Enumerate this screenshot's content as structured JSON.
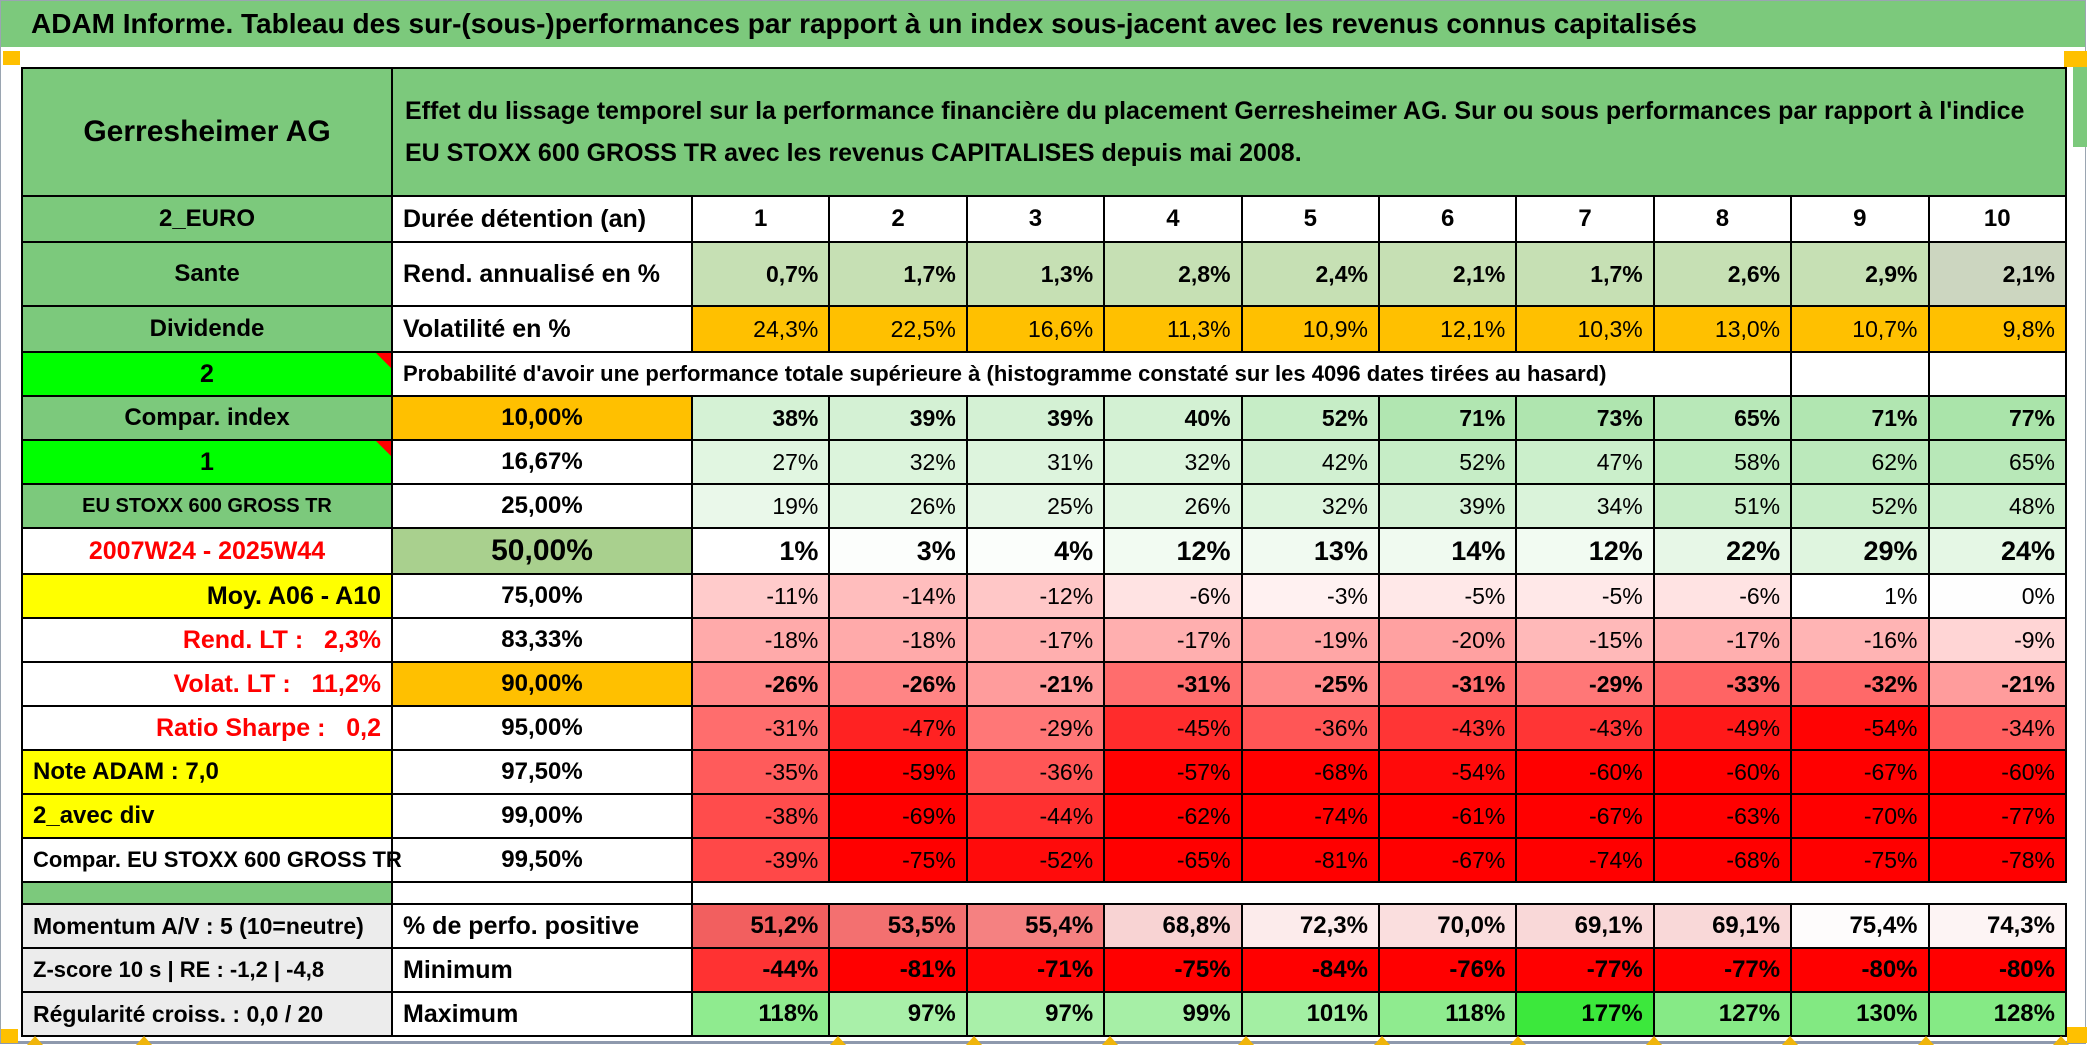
{
  "title": "ADAM Informe. Tableau des sur-(sous-)performances par rapport à un index sous-jacent avec les revenus connus capitalisés",
  "accent_colors": {
    "banner_green": "#7cc97c",
    "bright_green": "#00ff00",
    "orange": "#ffc000",
    "yellow": "#ffff00",
    "mid_green": "#a9d08e",
    "light_green": "#c6e0b4",
    "label_gray": "#ececec",
    "alert_red": "#ff0000"
  },
  "table": {
    "rows": [
      {
        "name": "row-title-block",
        "h": 128,
        "label": {
          "t": "Gerresheimer AG",
          "bg": "#7cc97c",
          "bold": true,
          "align": "center",
          "size": 30
        },
        "merge": {
          "t": "Effet du lissage temporel sur la performance financière du placement Gerresheimer AG. Sur ou sous performances par rapport à l'indice EU STOXX 600 GROSS TR avec les revenus CAPITALISES depuis mai 2008.",
          "span": 11,
          "bg": "#7cc97c",
          "bold": true,
          "align": "left",
          "size": 25,
          "wrap": true
        }
      },
      {
        "name": "row-holding-period",
        "h": 46,
        "label": {
          "t": "2_EURO",
          "bg": "#7cc97c",
          "bold": true,
          "align": "center",
          "size": 24
        },
        "sub": {
          "t": "Durée détention (an)",
          "bg": "#ffffff",
          "bold": true,
          "align": "left",
          "size": 25
        },
        "cells": {
          "v": [
            "1",
            "2",
            "3",
            "4",
            "5",
            "6",
            "7",
            "8",
            "9",
            "10"
          ],
          "bg": [
            "#ffffff",
            "#ffffff",
            "#ffffff",
            "#ffffff",
            "#ffffff",
            "#ffffff",
            "#ffffff",
            "#ffffff",
            "#ffffff",
            "#ffffff"
          ],
          "bold": true,
          "align": "center",
          "size": 24
        }
      },
      {
        "name": "row-annualized-return",
        "h": 64,
        "label": {
          "t": "Sante",
          "bg": "#7cc97c",
          "bold": true,
          "align": "center",
          "size": 24
        },
        "sub": {
          "t": "Rend. annualisé en %",
          "bg": "#ffffff",
          "bold": true,
          "align": "left",
          "size": 25
        },
        "cells": {
          "v": [
            "0,7%",
            "1,7%",
            "1,3%",
            "2,8%",
            "2,4%",
            "2,1%",
            "1,7%",
            "2,6%",
            "2,9%",
            "2,1%"
          ],
          "bg": [
            "#c6e0b4",
            "#c6e0b4",
            "#c6e0b4",
            "#c6e0b4",
            "#c6e0b4",
            "#c6e0b4",
            "#c6e0b4",
            "#c6e0b4",
            "#c6e0b4",
            "#ccd6c0"
          ],
          "bold": true,
          "align": "right",
          "size": 23
        }
      },
      {
        "name": "row-volatility",
        "h": 46,
        "label": {
          "t": "Dividende",
          "bg": "#7cc97c",
          "bold": true,
          "align": "center",
          "size": 24
        },
        "sub": {
          "t": "Volatilité en %",
          "bg": "#ffffff",
          "bold": true,
          "align": "left",
          "size": 25
        },
        "cells": {
          "v": [
            "24,3%",
            "22,5%",
            "16,6%",
            "11,3%",
            "10,9%",
            "12,1%",
            "10,3%",
            "13,0%",
            "10,7%",
            "9,8%"
          ],
          "bg": [
            "#ffc000",
            "#ffc000",
            "#ffc000",
            "#ffc000",
            "#ffc000",
            "#ffc000",
            "#ffc000",
            "#ffc000",
            "#ffc000",
            "#ffc000"
          ],
          "bold": false,
          "align": "right",
          "size": 23
        }
      },
      {
        "name": "row-probability-note",
        "h": 44,
        "label": {
          "t": "2",
          "bg": "#00ff00",
          "bold": true,
          "align": "center",
          "size": 25,
          "tri": true
        },
        "merge": {
          "t": "Probabilité d'avoir une performance totale supérieure à (histogramme constaté sur les 4096 dates tirées au hasard)",
          "span": 9,
          "bg": "#ffffff",
          "bold": true,
          "align": "left",
          "size": 22
        },
        "tail": 2
      },
      {
        "name": "row-p10",
        "h": 44,
        "label": {
          "t": "Compar. index",
          "bg": "#7cc97c",
          "bold": true,
          "align": "center",
          "size": 24
        },
        "sub": {
          "t": "10,00%",
          "bg": "#ffc000",
          "bold": true,
          "align": "center",
          "size": 24
        },
        "cells": {
          "v": [
            "38%",
            "39%",
            "39%",
            "40%",
            "52%",
            "71%",
            "73%",
            "65%",
            "71%",
            "77%"
          ],
          "bg": [
            "#d5f2d5",
            "#d4f1d4",
            "#d4f1d4",
            "#d3f1d3",
            "#c6edc6",
            "#b1e6b1",
            "#afe5af",
            "#b8e8b8",
            "#b1e6b1",
            "#aae4aa"
          ],
          "bold": true,
          "align": "right",
          "size": 23
        }
      },
      {
        "name": "row-p16-67",
        "h": 44,
        "label": {
          "t": "1",
          "bg": "#00ff00",
          "bold": true,
          "align": "center",
          "size": 25,
          "tri": true
        },
        "sub": {
          "t": "16,67%",
          "bg": "#ffffff",
          "bold": true,
          "align": "center",
          "size": 24
        },
        "cells": {
          "v": [
            "27%",
            "32%",
            "31%",
            "32%",
            "42%",
            "52%",
            "47%",
            "58%",
            "62%",
            "65%"
          ],
          "bg": [
            "#e1f6e1",
            "#dcf4dc",
            "#ddf4dd",
            "#dcf4dc",
            "#d1f0d1",
            "#c6edc6",
            "#cbefcb",
            "#bfebbf",
            "#bbe9bb",
            "#b8e8b8"
          ],
          "bold": false,
          "align": "right",
          "size": 23
        }
      },
      {
        "name": "row-p25",
        "h": 44,
        "label": {
          "t": "EU STOXX 600 GROSS TR",
          "bg": "#7cc97c",
          "bold": true,
          "align": "center",
          "size": 20
        },
        "sub": {
          "t": "25,00%",
          "bg": "#ffffff",
          "bold": true,
          "align": "center",
          "size": 24
        },
        "cells": {
          "v": [
            "19%",
            "26%",
            "25%",
            "26%",
            "32%",
            "39%",
            "34%",
            "51%",
            "52%",
            "48%"
          ],
          "bg": [
            "#eaf8ea",
            "#e2f6e2",
            "#e4f6e4",
            "#e2f6e2",
            "#dcf4dc",
            "#d4f1d4",
            "#daf3da",
            "#c7edc7",
            "#c6edc6",
            "#caeeca"
          ],
          "bold": false,
          "align": "right",
          "size": 23
        }
      },
      {
        "name": "row-p50",
        "h": 46,
        "label": {
          "t": "2007W24 - 2025W44",
          "bg": "#ffffff",
          "fg": "#ff0000",
          "bold": true,
          "align": "center",
          "size": 25
        },
        "sub": {
          "t": "50,00%",
          "bg": "#a9d08e",
          "bold": true,
          "align": "center",
          "size": 30
        },
        "cells": {
          "v": [
            "1%",
            "3%",
            "4%",
            "12%",
            "13%",
            "14%",
            "12%",
            "22%",
            "29%",
            "24%"
          ],
          "bg": [
            "#ffffff",
            "#fcfefc",
            "#fbfefb",
            "#f2fbf2",
            "#f1faf1",
            "#f0faf0",
            "#f2fbf2",
            "#e7f7e7",
            "#dff5df",
            "#e5f7e5"
          ],
          "bold": true,
          "align": "right",
          "size": 27
        }
      },
      {
        "name": "row-p75",
        "h": 44,
        "label": {
          "t": "Moy. A06 - A10",
          "bg": "#ffff00",
          "bold": true,
          "align": "right",
          "size": 25
        },
        "sub": {
          "t": "75,00%",
          "bg": "#ffffff",
          "bold": true,
          "align": "center",
          "size": 24
        },
        "cells": {
          "v": [
            "-11%",
            "-14%",
            "-12%",
            "-6%",
            "-3%",
            "-5%",
            "-5%",
            "-6%",
            "1%",
            "0%"
          ],
          "bg": [
            "#ffcbcb",
            "#ffbdbd",
            "#ffc7c7",
            "#ffe3e3",
            "#fff1f1",
            "#ffe8e8",
            "#ffe8e8",
            "#ffe3e3",
            "#ffffff",
            "#fefefe"
          ],
          "bold": false,
          "align": "right",
          "size": 23
        }
      },
      {
        "name": "row-p83-33",
        "h": 44,
        "label": {
          "t": "Rend. LT :   2,3%",
          "bg": "#ffffff",
          "fg": "#ff0000",
          "bold": true,
          "align": "right",
          "size": 25
        },
        "sub": {
          "t": "83,33%",
          "bg": "#ffffff",
          "bold": true,
          "align": "center",
          "size": 24
        },
        "cells": {
          "v": [
            "-18%",
            "-18%",
            "-17%",
            "-17%",
            "-19%",
            "-20%",
            "-15%",
            "-17%",
            "-16%",
            "-9%"
          ],
          "bg": [
            "#ffaaaa",
            "#ffaaaa",
            "#ffafaf",
            "#ffafaf",
            "#ffa6a6",
            "#ffa1a1",
            "#ffb9b9",
            "#ffafaf",
            "#ffb4b4",
            "#ffd5d5"
          ],
          "bold": false,
          "align": "right",
          "size": 23
        }
      },
      {
        "name": "row-p90",
        "h": 44,
        "label": {
          "t": "Volat. LT :   11,2%",
          "bg": "#ffffff",
          "fg": "#ff0000",
          "bold": true,
          "align": "right",
          "size": 25
        },
        "sub": {
          "t": "90,00%",
          "bg": "#ffc000",
          "bold": true,
          "align": "center",
          "size": 24
        },
        "cells": {
          "v": [
            "-26%",
            "-26%",
            "-21%",
            "-31%",
            "-25%",
            "-31%",
            "-29%",
            "-33%",
            "-32%",
            "-21%"
          ],
          "bg": [
            "#ff8585",
            "#ff8585",
            "#ff9c9c",
            "#ff6d6d",
            "#ff8a8a",
            "#ff6d6d",
            "#ff7777",
            "#ff6464",
            "#ff6969",
            "#ff9c9c"
          ],
          "bold": true,
          "align": "right",
          "size": 23
        }
      },
      {
        "name": "row-p95",
        "h": 44,
        "label": {
          "t": "Ratio Sharpe :   0,2",
          "bg": "#ffffff",
          "fg": "#ff0000",
          "bold": true,
          "align": "right",
          "size": 25
        },
        "sub": {
          "t": "95,00%",
          "bg": "#ffffff",
          "bold": true,
          "align": "center",
          "size": 24
        },
        "cells": {
          "v": [
            "-31%",
            "-47%",
            "-29%",
            "-45%",
            "-36%",
            "-43%",
            "-43%",
            "-49%",
            "-54%",
            "-34%"
          ],
          "bg": [
            "#ff6d6d",
            "#ff2222",
            "#ff7777",
            "#ff2c2c",
            "#ff5656",
            "#ff3535",
            "#ff3535",
            "#ff1919",
            "#ff0303",
            "#ff5f5f"
          ],
          "bold": false,
          "align": "right",
          "size": 23
        }
      },
      {
        "name": "row-p97-5",
        "h": 44,
        "label": {
          "t": "Note ADAM : 7,0",
          "bg": "#ffff00",
          "bold": true,
          "align": "left",
          "size": 24
        },
        "sub": {
          "t": "97,50%",
          "bg": "#ffffff",
          "bold": true,
          "align": "center",
          "size": 24
        },
        "cells": {
          "v": [
            "-35%",
            "-59%",
            "-36%",
            "-57%",
            "-68%",
            "-54%",
            "-60%",
            "-60%",
            "-67%",
            "-60%"
          ],
          "bg": [
            "#ff5b5b",
            "#ff0000",
            "#ff5656",
            "#ff0202",
            "#ff0000",
            "#ff0a0a",
            "#ff0000",
            "#ff0000",
            "#ff0000",
            "#ff0000"
          ],
          "bold": false,
          "align": "right",
          "size": 23
        }
      },
      {
        "name": "row-p99",
        "h": 44,
        "label": {
          "t": "2_avec div",
          "bg": "#ffff00",
          "bold": true,
          "align": "left",
          "size": 24
        },
        "sub": {
          "t": "99,00%",
          "bg": "#ffffff",
          "bold": true,
          "align": "center",
          "size": 24
        },
        "cells": {
          "v": [
            "-38%",
            "-69%",
            "-44%",
            "-62%",
            "-74%",
            "-61%",
            "-67%",
            "-63%",
            "-70%",
            "-77%"
          ],
          "bg": [
            "#ff4c4c",
            "#ff0000",
            "#ff3030",
            "#ff0000",
            "#ff0000",
            "#ff0000",
            "#ff0000",
            "#ff0000",
            "#ff0000",
            "#ff0000"
          ],
          "bold": false,
          "align": "right",
          "size": 23
        }
      },
      {
        "name": "row-p99-5",
        "h": 44,
        "label": {
          "t": "Compar. EU STOXX 600 GROSS TR",
          "bg": "#ffffff",
          "bold": true,
          "align": "right",
          "size": 22
        },
        "sub": {
          "t": "99,50%",
          "bg": "#ffffff",
          "bold": true,
          "align": "center",
          "size": 24
        },
        "cells": {
          "v": [
            "-39%",
            "-75%",
            "-52%",
            "-65%",
            "-81%",
            "-67%",
            "-74%",
            "-68%",
            "-75%",
            "-78%"
          ],
          "bg": [
            "#ff4848",
            "#ff0000",
            "#ff0b0b",
            "#ff0000",
            "#ff0000",
            "#ff0000",
            "#ff0000",
            "#ff0000",
            "#ff0000",
            "#ff0000"
          ],
          "bold": false,
          "align": "right",
          "size": 23
        }
      },
      {
        "name": "row-separator",
        "h": 22,
        "label": {
          "t": "",
          "bg": "#7cc97c"
        },
        "sub": {
          "t": "",
          "bg": "#ffffff"
        },
        "merge": {
          "t": "",
          "span": 10,
          "bg": "#ffffff",
          "noborder": true
        }
      },
      {
        "name": "row-positive-perf",
        "h": 44,
        "label": {
          "t": "Momentum A/V : 5 (10=neutre)",
          "bg": "#ececec",
          "bold": true,
          "align": "left",
          "size": 23
        },
        "sub": {
          "t": "% de perfo. positive",
          "bg": "#ffffff",
          "bold": true,
          "align": "left",
          "size": 25
        },
        "cells": {
          "v": [
            "51,2%",
            "53,5%",
            "55,4%",
            "68,8%",
            "72,3%",
            "70,0%",
            "69,1%",
            "69,1%",
            "75,4%",
            "74,3%"
          ],
          "bg": [
            "#f25f5f",
            "#f37070",
            "#f58181",
            "#f8d3d3",
            "#fcebeb",
            "#fadede",
            "#f9d8d8",
            "#f9d8d8",
            "#fefcfc",
            "#fdf4f4"
          ],
          "bold": true,
          "align": "right",
          "size": 24
        }
      },
      {
        "name": "row-minimum",
        "h": 44,
        "label": {
          "t": "Z-score 10 s | RE : -1,2 | -4,8",
          "bg": "#ececec",
          "bold": true,
          "align": "left",
          "size": 22
        },
        "sub": {
          "t": "Minimum",
          "bg": "#ffffff",
          "bold": true,
          "align": "left",
          "size": 25
        },
        "cells": {
          "v": [
            "-44%",
            "-81%",
            "-71%",
            "-75%",
            "-84%",
            "-76%",
            "-77%",
            "-77%",
            "-80%",
            "-80%"
          ],
          "bg": [
            "#ff3232",
            "#ff0000",
            "#ff0505",
            "#ff0000",
            "#ff0000",
            "#ff0000",
            "#ff0000",
            "#ff0000",
            "#ff0000",
            "#ff0000"
          ],
          "bold": true,
          "align": "right",
          "size": 24
        }
      },
      {
        "name": "row-maximum",
        "h": 44,
        "label": {
          "t": "Régularité croiss. : 0,0 / 20",
          "bg": "#ececec",
          "bold": true,
          "align": "left",
          "size": 23
        },
        "sub": {
          "t": "Maximum",
          "bg": "#ffffff",
          "bold": true,
          "align": "left",
          "size": 25
        },
        "cells": {
          "v": [
            "118%",
            "97%",
            "97%",
            "99%",
            "101%",
            "118%",
            "177%",
            "127%",
            "130%",
            "128%"
          ],
          "bg": [
            "#8feb8f",
            "#a9f0a9",
            "#a9f0a9",
            "#a6efa6",
            "#a3efa3",
            "#8feb8f",
            "#3ce83c",
            "#86ea86",
            "#82e982",
            "#85ea85"
          ],
          "bold": true,
          "align": "right",
          "size": 24
        }
      }
    ]
  }
}
